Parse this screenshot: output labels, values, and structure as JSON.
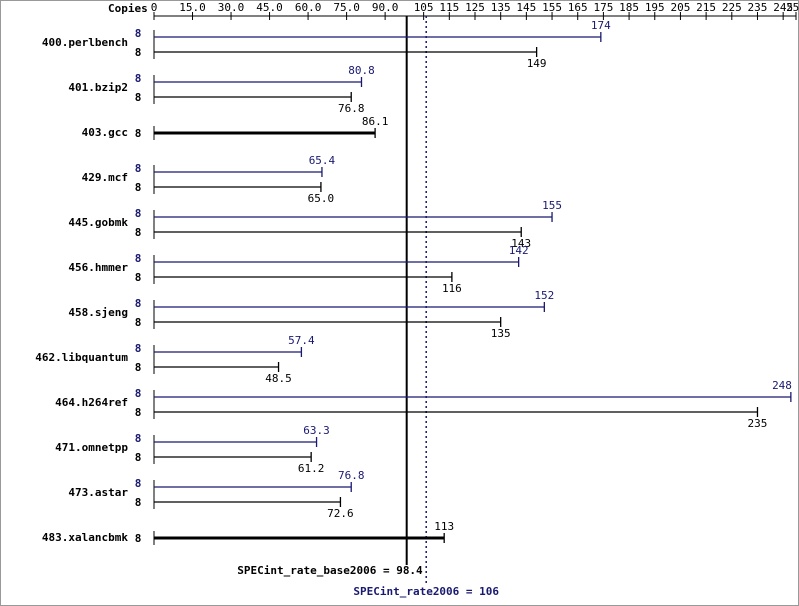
{
  "chart_data": {
    "type": "bar",
    "orientation": "horizontal",
    "copies_label": "Copies",
    "categories": [
      "400.perlbench",
      "401.bzip2",
      "403.gcc",
      "429.mcf",
      "445.gobmk",
      "456.hmmer",
      "458.sjeng",
      "462.libquantum",
      "464.h264ref",
      "471.omnetpp",
      "473.astar",
      "483.xalancbmk"
    ],
    "series": [
      {
        "color": "#191970",
        "copies": [
          8,
          8,
          null,
          8,
          8,
          8,
          8,
          8,
          8,
          8,
          8,
          null
        ],
        "values": [
          174,
          80.8,
          null,
          65.4,
          155,
          142,
          152,
          57.4,
          248,
          63.3,
          76.8,
          null
        ]
      },
      {
        "color": "#000000",
        "copies": [
          8,
          8,
          8,
          8,
          8,
          8,
          8,
          8,
          8,
          8,
          8,
          8
        ],
        "values": [
          149,
          76.8,
          86.1,
          65.0,
          143,
          116,
          135,
          48.5,
          235,
          61.2,
          72.6,
          113
        ],
        "value_labels": [
          "149",
          "76.8",
          "86.1",
          "65.0",
          "143",
          "116",
          "135",
          "48.5",
          "235",
          "61.2",
          "72.6",
          "113"
        ]
      }
    ],
    "xlim": [
      0,
      250
    ],
    "xticks": [
      0,
      {
        "value": 15,
        "label": "15.0"
      },
      {
        "value": 30,
        "label": "30.0"
      },
      {
        "value": 45,
        "label": "45.0"
      },
      {
        "value": 60,
        "label": "60.0"
      },
      {
        "value": 75,
        "label": "75.0"
      },
      {
        "value": 90,
        "label": "90.0"
      },
      105,
      115,
      125,
      135,
      145,
      155,
      165,
      175,
      185,
      195,
      205,
      215,
      225,
      235,
      245,
      250
    ],
    "reference_lines": [
      {
        "label": "SPECint_rate_base2006 = 98.4",
        "value": 98.4,
        "color": "#000000",
        "style": "solid"
      },
      {
        "label": "SPECint_rate2006 = 106",
        "value": 106,
        "color": "#191970",
        "style": "dotted"
      }
    ]
  }
}
